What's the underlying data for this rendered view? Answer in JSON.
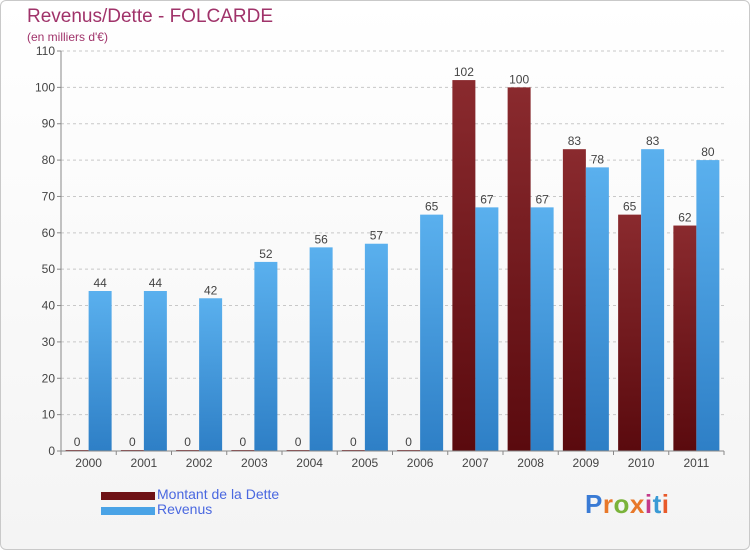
{
  "title": "Revenus/Dette - FOLCARDE",
  "subtitle": "(en milliers d'€)",
  "logo_text": "Proxiti",
  "colors": {
    "dette": "#7a1a1e",
    "revenus": "#4aa3e6",
    "title": "#a0336a",
    "legend_text": "#4a68e0"
  },
  "chart_data": {
    "type": "bar",
    "title": "Revenus/Dette - FOLCARDE",
    "subtitle": "(en milliers d'€)",
    "categories": [
      "2000",
      "2001",
      "2002",
      "2003",
      "2004",
      "2005",
      "2006",
      "2007",
      "2008",
      "2009",
      "2010",
      "2011"
    ],
    "series": [
      {
        "name": "Montant de la Dette",
        "values": [
          0,
          0,
          0,
          0,
          0,
          0,
          0,
          102,
          100,
          83,
          65,
          62
        ]
      },
      {
        "name": "Revenus",
        "values": [
          44,
          44,
          42,
          52,
          56,
          57,
          65,
          67,
          67,
          78,
          83,
          80
        ]
      }
    ],
    "yticks": [
      0,
      10,
      20,
      30,
      40,
      50,
      60,
      70,
      80,
      90,
      100,
      110
    ],
    "ylim": [
      0,
      110
    ],
    "grid": "horizontal dashed",
    "legend_position": "bottom-left"
  }
}
